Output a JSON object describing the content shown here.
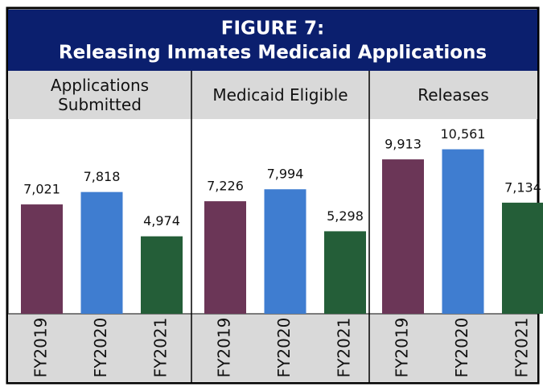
{
  "chart_data": {
    "type": "bar",
    "title": "FIGURE 7:",
    "subtitle": "Releasing Inmates Medicaid Applications",
    "categories": [
      "Applications Submitted",
      "Medicaid Eligible",
      "Releases"
    ],
    "series": [
      {
        "name": "FY2019",
        "color": "#6b3657",
        "values": [
          7021,
          7226,
          9913
        ],
        "value_labels": [
          "7,021",
          "7,226",
          "9,913"
        ]
      },
      {
        "name": "FY2020",
        "color": "#3f7dd0",
        "values": [
          7818,
          7994,
          10561
        ],
        "value_labels": [
          "7,818",
          "7,994",
          "10,561"
        ]
      },
      {
        "name": "FY2021",
        "color": "#245e38",
        "values": [
          4974,
          5298,
          7134
        ],
        "value_labels": [
          "4,974",
          "5,298",
          "7,134"
        ]
      }
    ],
    "ylim": [
      0,
      12500
    ]
  }
}
